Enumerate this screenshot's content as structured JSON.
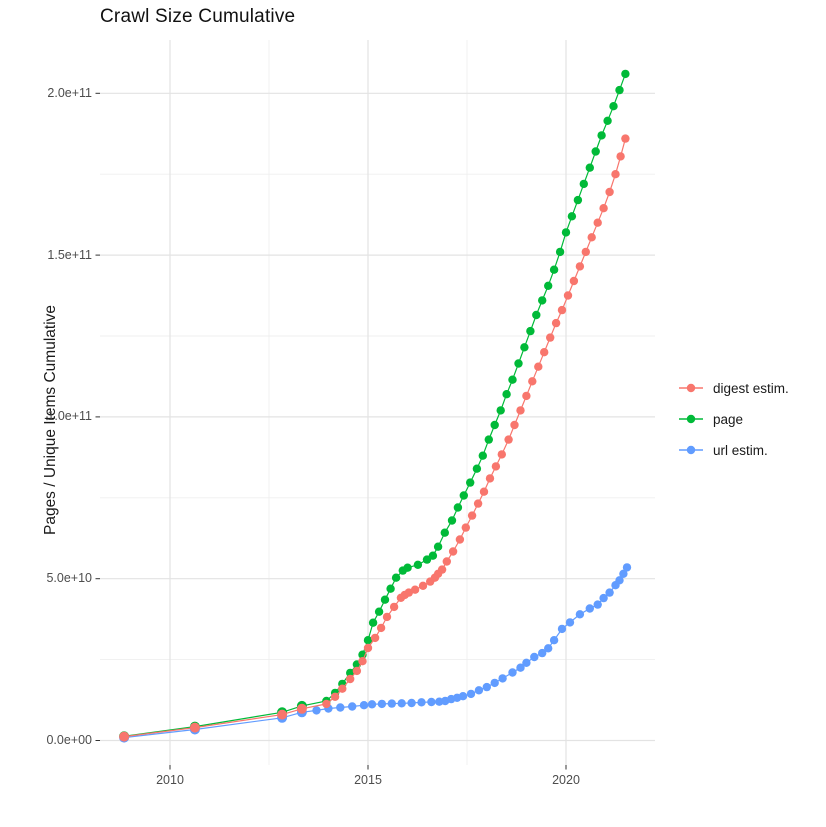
{
  "title": "Crawl Size Cumulative",
  "legend": {
    "items": [
      {
        "label": "digest estim.",
        "color": "#F8766D"
      },
      {
        "label": "page",
        "color": "#00BA38"
      },
      {
        "label": "url estim.",
        "color": "#619CFF"
      }
    ]
  },
  "chart_data": {
    "type": "scatter",
    "title": "Crawl Size Cumulative",
    "xlabel": "",
    "ylabel": "Pages / Unique Items Cumulative",
    "xlim": [
      2008.2,
      2022.3
    ],
    "ylim": [
      -7500000000,
      217000000000
    ],
    "grid": "major and minor, light gray on white panel",
    "legend_position": "right-center",
    "x_ticks": [
      {
        "label": "2010",
        "value": 2010
      },
      {
        "label": "2015",
        "value": 2015
      },
      {
        "label": "2020",
        "value": 2020
      }
    ],
    "x_minor_ticks": [
      2012.5,
      2017.5
    ],
    "y_ticks": [
      {
        "label": "0.0e+00",
        "value": 0
      },
      {
        "label": "5.0e+10",
        "value": 50000000000
      },
      {
        "label": "1.0e+11",
        "value": 100000000000
      },
      {
        "label": "1.5e+11",
        "value": 150000000000
      },
      {
        "label": "2.0e+11",
        "value": 200000000000
      }
    ],
    "y_minor_ticks": [
      25000000000,
      75000000000,
      125000000000,
      175000000000
    ],
    "series": [
      {
        "name": "digest estim.",
        "color": "#F8766D",
        "z": 2,
        "points": [
          [
            2008.84,
            1200000000.0,
            5
          ],
          [
            2010.63,
            4000000000.0,
            5
          ],
          [
            2012.83,
            8000000000.0,
            5
          ],
          [
            2013.33,
            9800000000.0,
            5
          ],
          [
            2013.95,
            11300000000.0
          ],
          [
            2014.17,
            13500000000.0
          ],
          [
            2014.35,
            16000000000.0
          ],
          [
            2014.55,
            19000000000.0
          ],
          [
            2014.72,
            21500000000.0
          ],
          [
            2014.86,
            24500000000.0
          ],
          [
            2015.0,
            28600000000.0
          ],
          [
            2015.18,
            31700000000.0
          ],
          [
            2015.33,
            34800000000.0
          ],
          [
            2015.48,
            38200000000.0
          ],
          [
            2015.66,
            41300000000.0
          ],
          [
            2015.83,
            44100000000.0
          ],
          [
            2015.93,
            45000000000.0
          ],
          [
            2016.03,
            45700000000.0
          ],
          [
            2016.19,
            46600000000.0
          ],
          [
            2016.39,
            47800000000.0
          ],
          [
            2016.57,
            49100000000.0
          ],
          [
            2016.69,
            50300000000.0
          ],
          [
            2016.77,
            51500000000.0
          ],
          [
            2016.87,
            52800000000.0
          ],
          [
            2016.99,
            55300000000.0
          ],
          [
            2017.15,
            58400000000.0
          ],
          [
            2017.32,
            62100000000.0
          ],
          [
            2017.47,
            65800000000.0
          ],
          [
            2017.63,
            69500000000.0
          ],
          [
            2017.78,
            73200000000.0
          ],
          [
            2017.93,
            76900000000.0
          ],
          [
            2018.08,
            81000000000.0
          ],
          [
            2018.23,
            84700000000.0
          ],
          [
            2018.38,
            88400000000.0
          ],
          [
            2018.55,
            93000000000.0
          ],
          [
            2018.7,
            97500000000.0
          ],
          [
            2018.85,
            102000000000.0
          ],
          [
            2019.0,
            106500000000.0
          ],
          [
            2019.15,
            111000000000.0
          ],
          [
            2019.3,
            115500000000.0
          ],
          [
            2019.45,
            120000000000.0
          ],
          [
            2019.6,
            124500000000.0
          ],
          [
            2019.75,
            129000000000.0
          ],
          [
            2019.9,
            133000000000.0
          ],
          [
            2020.05,
            137500000000.0
          ],
          [
            2020.2,
            142000000000.0
          ],
          [
            2020.35,
            146500000000.0
          ],
          [
            2020.5,
            151000000000.0
          ],
          [
            2020.65,
            155500000000.0
          ],
          [
            2020.8,
            160000000000.0
          ],
          [
            2020.95,
            164500000000.0
          ],
          [
            2021.1,
            169500000000.0
          ],
          [
            2021.25,
            175000000000.0
          ],
          [
            2021.38,
            180500000000.0
          ],
          [
            2021.5,
            186000000000.0
          ]
        ]
      },
      {
        "name": "page",
        "color": "#00BA38",
        "z": 0,
        "points": [
          [
            2008.84,
            1300000000.0,
            5
          ],
          [
            2010.63,
            4300000000.0,
            5
          ],
          [
            2012.83,
            8700000000.0,
            5
          ],
          [
            2013.33,
            10700000000.0,
            5
          ],
          [
            2013.95,
            12200000000.0
          ],
          [
            2014.17,
            14700000000.0
          ],
          [
            2014.35,
            17500000000.0
          ],
          [
            2014.55,
            20900000000.0
          ],
          [
            2014.72,
            23500000000.0
          ],
          [
            2014.86,
            26500000000.0
          ],
          [
            2015.0,
            31000000000.0
          ],
          [
            2015.13,
            36400000000.0
          ],
          [
            2015.28,
            39800000000.0
          ],
          [
            2015.43,
            43500000000.0
          ],
          [
            2015.57,
            46900000000.0
          ],
          [
            2015.71,
            50300000000.0
          ],
          [
            2015.88,
            52500000000.0
          ],
          [
            2016.0,
            53400000000.0
          ],
          [
            2016.26,
            54300000000.0
          ],
          [
            2016.49,
            55900000000.0
          ],
          [
            2016.64,
            57100000000.0
          ],
          [
            2016.77,
            59900000000.0
          ],
          [
            2016.94,
            64200000000.0
          ],
          [
            2017.12,
            68000000000.0
          ],
          [
            2017.27,
            72000000000.0
          ],
          [
            2017.42,
            75700000000.0
          ],
          [
            2017.58,
            79700000000.0
          ],
          [
            2017.75,
            84000000000.0
          ],
          [
            2017.9,
            88000000000.0
          ],
          [
            2018.05,
            93000000000.0
          ],
          [
            2018.2,
            97500000000.0
          ],
          [
            2018.35,
            102000000000.0
          ],
          [
            2018.5,
            107000000000.0
          ],
          [
            2018.65,
            111500000000.0
          ],
          [
            2018.8,
            116500000000.0
          ],
          [
            2018.95,
            121500000000.0
          ],
          [
            2019.1,
            126500000000.0
          ],
          [
            2019.25,
            131500000000.0
          ],
          [
            2019.4,
            136000000000.0
          ],
          [
            2019.55,
            140500000000.0
          ],
          [
            2019.7,
            145500000000.0
          ],
          [
            2019.85,
            151000000000.0
          ],
          [
            2020.0,
            157000000000.0
          ],
          [
            2020.15,
            162000000000.0
          ],
          [
            2020.3,
            167000000000.0
          ],
          [
            2020.45,
            172000000000.0
          ],
          [
            2020.6,
            177000000000.0
          ],
          [
            2020.75,
            182000000000.0
          ],
          [
            2020.9,
            187000000000.0
          ],
          [
            2021.05,
            191500000000.0
          ],
          [
            2021.2,
            196000000000.0
          ],
          [
            2021.35,
            201000000000.0
          ],
          [
            2021.5,
            206000000000.0
          ]
        ]
      },
      {
        "name": "url estim.",
        "color": "#619CFF",
        "z": 1,
        "points": [
          [
            2008.84,
            900000000.0,
            5
          ],
          [
            2010.63,
            3400000000.0,
            5
          ],
          [
            2012.83,
            7000000000.0,
            5
          ],
          [
            2013.33,
            8700000000.0,
            5
          ],
          [
            2013.7,
            9300000000.0
          ],
          [
            2014.0,
            9900000000.0
          ],
          [
            2014.3,
            10200000000.0
          ],
          [
            2014.6,
            10500000000.0
          ],
          [
            2014.9,
            10900000000.0
          ],
          [
            2015.1,
            11200000000.0
          ],
          [
            2015.35,
            11300000000.0
          ],
          [
            2015.6,
            11400000000.0
          ],
          [
            2015.85,
            11500000000.0
          ],
          [
            2016.1,
            11600000000.0
          ],
          [
            2016.35,
            11800000000.0
          ],
          [
            2016.6,
            11900000000.0
          ],
          [
            2016.8,
            12000000000.0
          ],
          [
            2016.95,
            12200000000.0
          ],
          [
            2017.1,
            12800000000.0
          ],
          [
            2017.25,
            13200000000.0
          ],
          [
            2017.4,
            13700000000.0
          ],
          [
            2017.6,
            14400000000.0
          ],
          [
            2017.8,
            15500000000.0
          ],
          [
            2018.0,
            16500000000.0
          ],
          [
            2018.2,
            17800000000.0
          ],
          [
            2018.4,
            19200000000.0
          ],
          [
            2018.65,
            21000000000.0
          ],
          [
            2018.85,
            22500000000.0
          ],
          [
            2019.0,
            24000000000.0
          ],
          [
            2019.2,
            25800000000.0
          ],
          [
            2019.4,
            27000000000.0
          ],
          [
            2019.55,
            28500000000.0
          ],
          [
            2019.7,
            31000000000.0
          ],
          [
            2019.9,
            34500000000.0
          ],
          [
            2020.1,
            36500000000.0
          ],
          [
            2020.35,
            39000000000.0
          ],
          [
            2020.6,
            40800000000.0
          ],
          [
            2020.8,
            42000000000.0
          ],
          [
            2020.95,
            44000000000.0
          ],
          [
            2021.1,
            45700000000.0
          ],
          [
            2021.25,
            48000000000.0
          ],
          [
            2021.35,
            49500000000.0
          ],
          [
            2021.45,
            51500000000.0
          ],
          [
            2021.54,
            53500000000.0
          ]
        ]
      }
    ]
  }
}
